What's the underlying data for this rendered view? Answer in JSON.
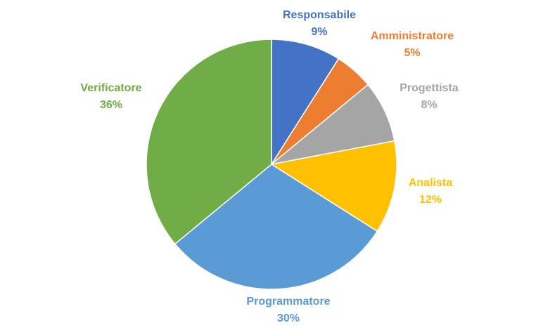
{
  "chart_data": {
    "type": "pie",
    "title": "",
    "slices": [
      {
        "label": "Responsabile",
        "value": 9,
        "display": "9%",
        "color": "#4472C4"
      },
      {
        "label": "Amministratore",
        "value": 5,
        "display": "5%",
        "color": "#ED7D31"
      },
      {
        "label": "Progettista",
        "value": 8,
        "display": "8%",
        "color": "#A5A5A5"
      },
      {
        "label": "Analista",
        "value": 12,
        "display": "12%",
        "color": "#FFC000"
      },
      {
        "label": "Programmatore",
        "value": 30,
        "display": "30%",
        "color": "#5B9BD5"
      },
      {
        "label": "Verificatore",
        "value": 36,
        "display": "36%",
        "color": "#70AD47"
      }
    ],
    "legend": "none",
    "data_labels": "outside"
  }
}
